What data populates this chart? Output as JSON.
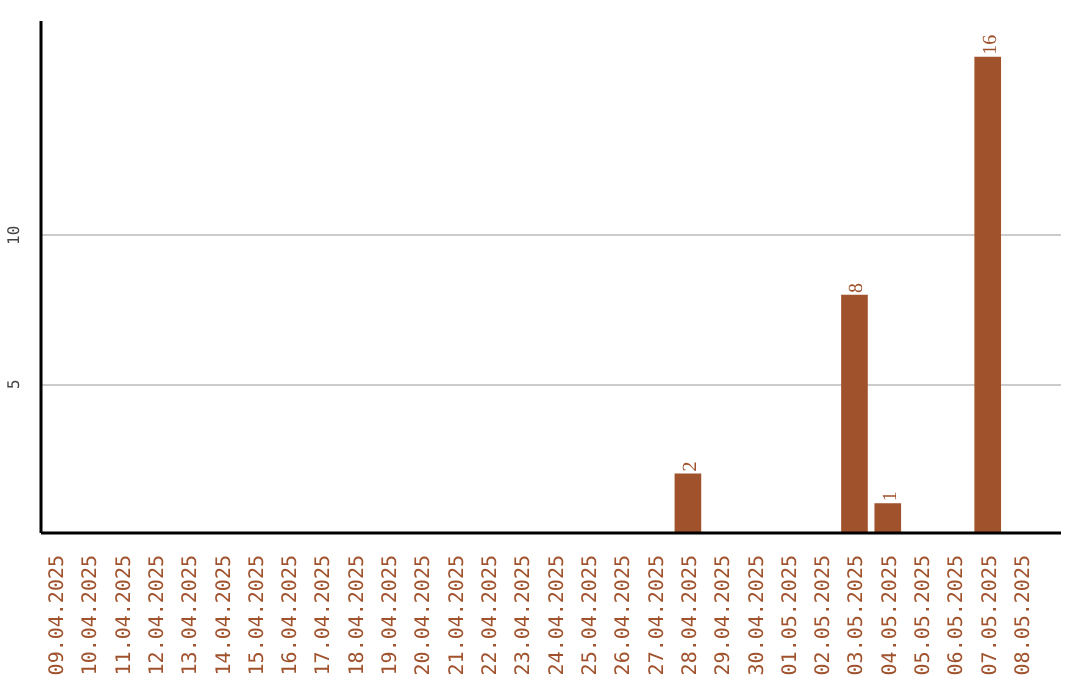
{
  "chart_data": {
    "type": "bar",
    "categories": [
      "09.04.2025",
      "10.04.2025",
      "11.04.2025",
      "12.04.2025",
      "13.04.2025",
      "14.04.2025",
      "15.04.2025",
      "16.04.2025",
      "17.04.2025",
      "18.04.2025",
      "19.04.2025",
      "20.04.2025",
      "21.04.2025",
      "22.04.2025",
      "23.04.2025",
      "24.04.2025",
      "25.04.2025",
      "26.04.2025",
      "27.04.2025",
      "28.04.2025",
      "29.04.2025",
      "30.04.2025",
      "01.05.2025",
      "02.05.2025",
      "03.05.2025",
      "04.05.2025",
      "05.05.2025",
      "06.05.2025",
      "07.05.2025",
      "08.05.2025"
    ],
    "values": [
      0,
      0,
      0,
      0,
      0,
      0,
      0,
      0,
      0,
      0,
      0,
      0,
      0,
      0,
      0,
      0,
      0,
      0,
      0,
      2,
      0,
      0,
      0,
      0,
      8,
      1,
      0,
      0,
      16,
      0
    ],
    "value_labels": [
      null,
      null,
      null,
      null,
      null,
      null,
      null,
      null,
      null,
      null,
      null,
      null,
      null,
      null,
      null,
      null,
      null,
      null,
      null,
      "2",
      null,
      null,
      null,
      null,
      "8",
      "1",
      null,
      null,
      "16",
      null
    ],
    "color": "#a0522d",
    "ylim": [
      0,
      17.2
    ],
    "yticks": [
      5,
      10
    ],
    "grid": "y"
  }
}
